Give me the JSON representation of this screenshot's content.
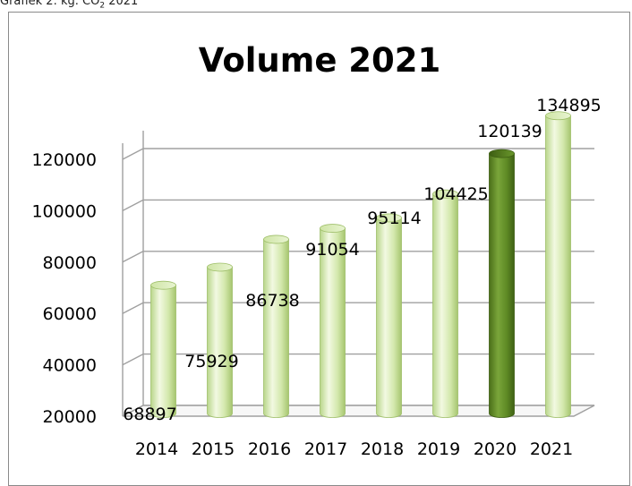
{
  "caption": {
    "prefix": "Grafiek 2: kg. CO",
    "sub": "2",
    "suffix": " 2021"
  },
  "chart_data": {
    "type": "bar",
    "title": "Volume 2021",
    "categories": [
      "2014",
      "2015",
      "2016",
      "2017",
      "2018",
      "2019",
      "2020",
      "2021"
    ],
    "values": [
      68897,
      75929,
      86738,
      91054,
      95114,
      104425,
      120139,
      134895
    ],
    "ylim": [
      20000,
      140000
    ],
    "yticks": [
      20000,
      40000,
      60000,
      80000,
      100000,
      120000
    ],
    "ytick_labels": [
      "20000",
      "40000",
      "60000",
      "80000",
      "100000",
      "120000"
    ],
    "grid": true,
    "legend": "none",
    "bar_style": "3d-cylinder",
    "colors": {
      "bar_light": "#d9ebb6",
      "bar_light_edge": "#9fbf6a",
      "bar_highlight": "#5f8a22",
      "highlight_category": "2020",
      "grid": "#a0a0a0"
    }
  }
}
